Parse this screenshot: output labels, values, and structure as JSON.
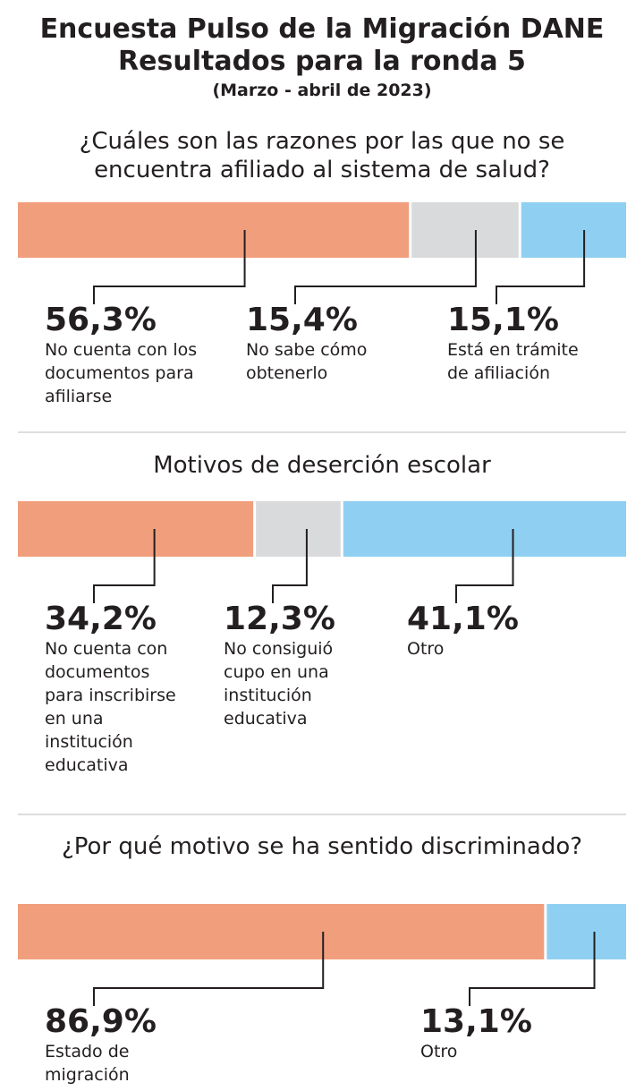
{
  "header": {
    "title": "Encuesta Pulso de la Migración DANE",
    "subtitle": "Resultados para la ronda 5",
    "period": "(Marzo - abril de 2023)"
  },
  "chart_data": [
    {
      "type": "stacked-bar",
      "title": "¿Cuáles son las razones por las que no se encuentra afiliado al sistema de salud?",
      "series": [
        {
          "name": "No cuenta con los documentos para afiliarse",
          "color": "#f19e7c",
          "values": [
            56.3
          ],
          "value_labels": [
            "56,3%"
          ]
        },
        {
          "name": "No sabe cómo obtenerlo",
          "color": "#d9dadc",
          "values": [
            15.4
          ],
          "value_labels": [
            "15,4%"
          ]
        },
        {
          "name": "Está en trámite de afiliación",
          "color": "#8fd0f2",
          "values": [
            15.1
          ],
          "value_labels": [
            "15,1%"
          ]
        }
      ]
    },
    {
      "type": "stacked-bar",
      "title": "Motivos de deserción escolar",
      "series": [
        {
          "name": "No cuenta con documentos para inscribirse en una institución educativa",
          "color": "#f19e7c",
          "values": [
            34.2
          ],
          "value_labels": [
            "34,2%"
          ]
        },
        {
          "name": "No consiguió cupo en una institución educativa",
          "color": "#d9dadc",
          "values": [
            12.3
          ],
          "value_labels": [
            "12,3%"
          ]
        },
        {
          "name": "Otro",
          "color": "#8fd0f2",
          "values": [
            41.1
          ],
          "value_labels": [
            "41,1%"
          ]
        }
      ]
    },
    {
      "type": "stacked-bar",
      "title": "¿Por qué motivo se ha sentido discriminado?",
      "series": [
        {
          "name": "Estado de migración",
          "color": "#f19e7c",
          "values": [
            86.9
          ],
          "value_labels": [
            "86,9%"
          ]
        },
        {
          "name": "Otro",
          "color": "#8fd0f2",
          "values": [
            13.1
          ],
          "value_labels": [
            "13,1%"
          ]
        }
      ]
    }
  ]
}
